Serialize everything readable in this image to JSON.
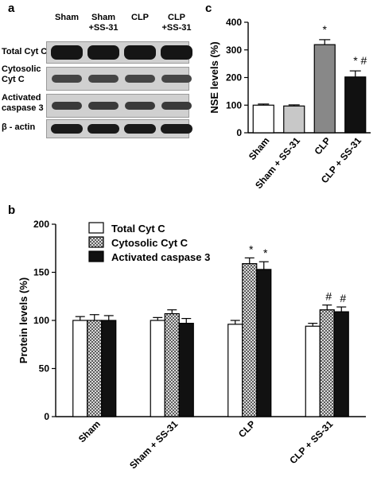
{
  "panel_a": {
    "label": "a",
    "columns": [
      "Sham",
      "Sham\n+SS-31",
      "CLP",
      "CLP\n+SS-31"
    ],
    "rows": [
      "Total Cyt C",
      "Cytosolic\nCyt C",
      "Activated\ncaspase 3",
      "β - actin"
    ]
  },
  "chart_data": [
    {
      "panel": "b",
      "type": "bar",
      "ylabel": "Protein levels (%)",
      "ylim": [
        0,
        200
      ],
      "yticks": [
        0,
        50,
        100,
        150,
        200
      ],
      "categories": [
        "Sham",
        "Sham + SS-31",
        "CLP",
        "CLP + SS-31"
      ],
      "legend_position": "top-left",
      "series": [
        {
          "name": "Total Cyt C",
          "fill": "#ffffff",
          "values": [
            100,
            100,
            96,
            94
          ],
          "errors": [
            4,
            3,
            4,
            3
          ],
          "annotations": [
            "",
            "",
            "",
            ""
          ]
        },
        {
          "name": "Cytosolic Cyt C",
          "fill": "hatch",
          "values": [
            100,
            107,
            159,
            111
          ],
          "errors": [
            6,
            4,
            6,
            5
          ],
          "annotations": [
            "",
            "",
            "*",
            "#"
          ]
        },
        {
          "name": "Activated caspase 3",
          "fill": "#111111",
          "values": [
            100,
            97,
            153,
            109
          ],
          "errors": [
            5,
            5,
            8,
            5
          ],
          "annotations": [
            "",
            "",
            "*",
            "#"
          ]
        }
      ]
    },
    {
      "panel": "c",
      "type": "bar",
      "ylabel": "NSE levels (%)",
      "ylim": [
        0,
        400
      ],
      "yticks": [
        0,
        100,
        200,
        300,
        400
      ],
      "categories": [
        "Sham",
        "Sham + SS-31",
        "CLP",
        "CLP + SS-31"
      ],
      "values": [
        100,
        97,
        319,
        202
      ],
      "errors": [
        4,
        4,
        18,
        22
      ],
      "fills": [
        "#ffffff",
        "#c8c8c8",
        "#888888",
        "#111111"
      ],
      "annotations": [
        "",
        "",
        "*",
        "* #"
      ]
    }
  ]
}
